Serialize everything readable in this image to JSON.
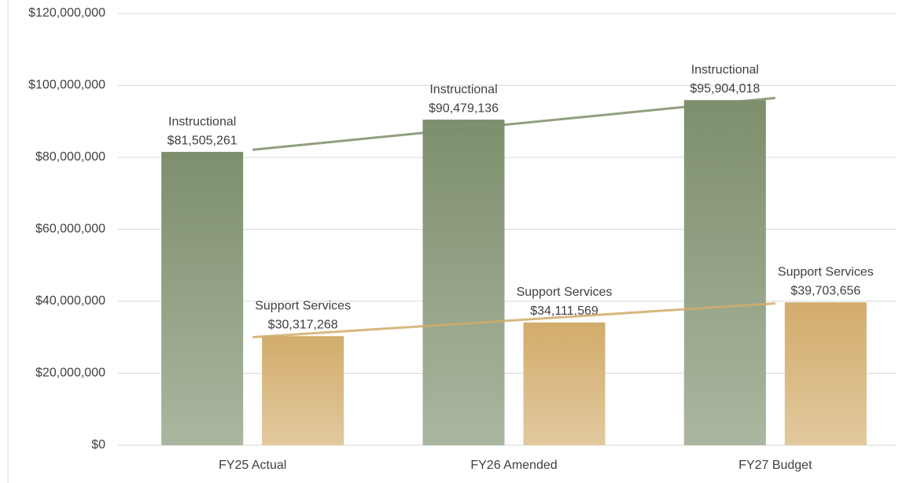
{
  "chart_data": {
    "type": "bar",
    "categories": [
      "FY25 Actual",
      "FY26 Amended",
      "FY27 Budget"
    ],
    "series": [
      {
        "name": "Instructional",
        "color": "#7d8f6c",
        "values": [
          81505261,
          90479136,
          95904018
        ],
        "value_labels": [
          "$81,505,261",
          "$90,479,136",
          "$95,904,018"
        ]
      },
      {
        "name": "Support Services",
        "color": "#d2ac6b",
        "values": [
          30317268,
          34111569,
          39703656
        ],
        "value_labels": [
          "$30,317,268",
          "$34,111,569",
          "$39,703,656"
        ]
      }
    ],
    "ylim": [
      0,
      120000000
    ],
    "yticks": [
      {
        "value": 0,
        "label": "$0"
      },
      {
        "value": 20000000,
        "label": "$20,000,000"
      },
      {
        "value": 40000000,
        "label": "$40,000,000"
      },
      {
        "value": 60000000,
        "label": "$60,000,000"
      },
      {
        "value": 80000000,
        "label": "$80,000,000"
      },
      {
        "value": 100000000,
        "label": "$100,000,000"
      },
      {
        "value": 120000000,
        "label": "$120,000,000"
      }
    ],
    "grid": true,
    "trendline": true
  }
}
